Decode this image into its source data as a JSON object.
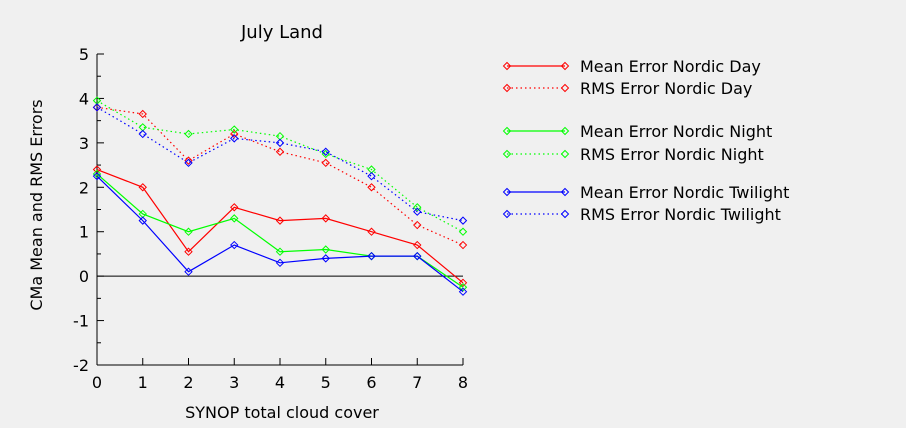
{
  "chart_data": {
    "type": "line",
    "title": "July Land",
    "xlabel": "SYNOP total cloud cover",
    "ylabel": "CMa Mean and RMS Errors",
    "xlim": [
      0,
      8
    ],
    "ylim": [
      -2,
      5
    ],
    "x_ticks": [
      "0",
      "1",
      "2",
      "3",
      "4",
      "5",
      "6",
      "7",
      "8"
    ],
    "y_ticks": [
      "-2",
      "-1",
      "0",
      "1",
      "2",
      "3",
      "4",
      "5"
    ],
    "grid": false,
    "zero_line": true,
    "legend_position": "right",
    "x": [
      0,
      1,
      2,
      3,
      4,
      5,
      6,
      7,
      8
    ],
    "series": [
      {
        "name": "Mean Error Nordic Day",
        "color": "#ff0000",
        "style": "solid",
        "marker": "diamond",
        "values": [
          2.4,
          2.0,
          0.55,
          1.55,
          1.25,
          1.3,
          1.0,
          0.7,
          -0.15
        ]
      },
      {
        "name": "RMS Error Nordic Day",
        "color": "#ff0000",
        "style": "dotted",
        "marker": "diamond",
        "values": [
          3.8,
          3.65,
          2.6,
          3.2,
          2.8,
          2.55,
          2.0,
          1.15,
          0.7
        ]
      },
      {
        "name": "Mean Error Nordic Night",
        "color": "#00ff00",
        "style": "solid",
        "marker": "diamond",
        "values": [
          2.3,
          1.4,
          1.0,
          1.3,
          0.55,
          0.6,
          0.45,
          0.45,
          -0.25
        ]
      },
      {
        "name": "RMS Error Nordic Night",
        "color": "#00ff00",
        "style": "dotted",
        "marker": "diamond",
        "values": [
          3.95,
          3.35,
          3.2,
          3.3,
          3.15,
          2.75,
          2.4,
          1.55,
          1.0
        ]
      },
      {
        "name": "Mean Error Nordic Twilight",
        "color": "#0000ff",
        "style": "solid",
        "marker": "diamond",
        "values": [
          2.25,
          1.25,
          0.1,
          0.7,
          0.3,
          0.4,
          0.45,
          0.45,
          -0.35
        ]
      },
      {
        "name": "RMS Error Nordic Twilight",
        "color": "#0000ff",
        "style": "dotted",
        "marker": "diamond",
        "values": [
          3.8,
          3.2,
          2.55,
          3.1,
          3.0,
          2.8,
          2.25,
          1.45,
          1.25
        ]
      }
    ]
  }
}
